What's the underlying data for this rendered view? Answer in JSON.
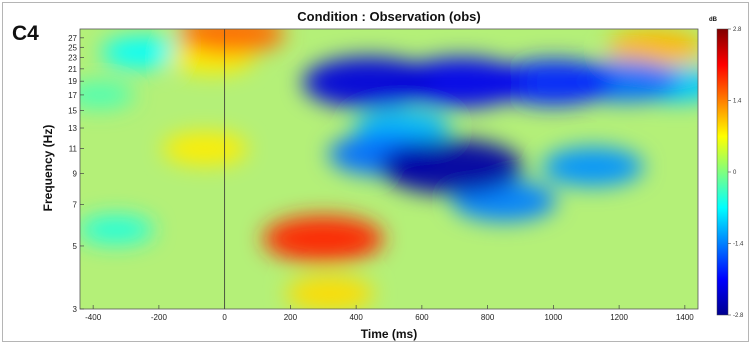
{
  "panel_label": "C4",
  "chart_data": {
    "type": "heatmap",
    "title": "Condition : Observation (obs)",
    "xlabel": "Time (ms)",
    "ylabel": "Frequency (Hz)",
    "xlim": [
      -440,
      1440
    ],
    "ylim": [
      3,
      29
    ],
    "y_scale": "log",
    "x_ticks": [
      -400,
      -200,
      0,
      200,
      400,
      600,
      800,
      1000,
      1200,
      1400
    ],
    "y_ticks": [
      3,
      5,
      7,
      9,
      11,
      13,
      15,
      17,
      19,
      21,
      23,
      25,
      27
    ],
    "stimulus_onset_ms": 0,
    "colorbar": {
      "label": "dB",
      "range": [
        -2.8,
        2.8
      ],
      "ticks": [
        "2.8",
        "1.4",
        "0",
        "-1.4",
        "-2.8"
      ],
      "colormap": "jet"
    },
    "features": [
      {
        "time_ms": 690,
        "freq_hz": 9.5,
        "value_db": -2.6
      },
      {
        "time_ms": 440,
        "freq_hz": 18.8,
        "value_db": -2.3
      },
      {
        "time_ms": 720,
        "freq_hz": 18.8,
        "value_db": -2.2
      },
      {
        "time_ms": 1000,
        "freq_hz": 18.8,
        "value_db": -1.9
      },
      {
        "time_ms": 1220,
        "freq_hz": 19,
        "value_db": -1.5
      },
      {
        "time_ms": 480,
        "freq_hz": 10.5,
        "value_db": -1.5
      },
      {
        "time_ms": 1120,
        "freq_hz": 9.5,
        "value_db": -1.3
      },
      {
        "time_ms": 540,
        "freq_hz": 13,
        "value_db": -1.1
      },
      {
        "time_ms": 850,
        "freq_hz": 7.2,
        "value_db": -1.4
      },
      {
        "time_ms": 1380,
        "freq_hz": 18.5,
        "value_db": -1.0
      },
      {
        "time_ms": 300,
        "freq_hz": 5.3,
        "value_db": 1.9
      },
      {
        "time_ms": 320,
        "freq_hz": 3.4,
        "value_db": 0.9
      },
      {
        "time_ms": 20,
        "freq_hz": 28,
        "value_db": 1.5
      },
      {
        "time_ms": 1310,
        "freq_hz": 25,
        "value_db": 1.1
      },
      {
        "time_ms": -60,
        "freq_hz": 11,
        "value_db": 0.8
      },
      {
        "time_ms": -40,
        "freq_hz": 23,
        "value_db": 0.8
      },
      {
        "time_ms": -250,
        "freq_hz": 24,
        "value_db": -0.7
      },
      {
        "time_ms": -330,
        "freq_hz": 5.7,
        "value_db": -0.5
      },
      {
        "time_ms": -380,
        "freq_hz": 17,
        "value_db": -0.3
      }
    ]
  }
}
